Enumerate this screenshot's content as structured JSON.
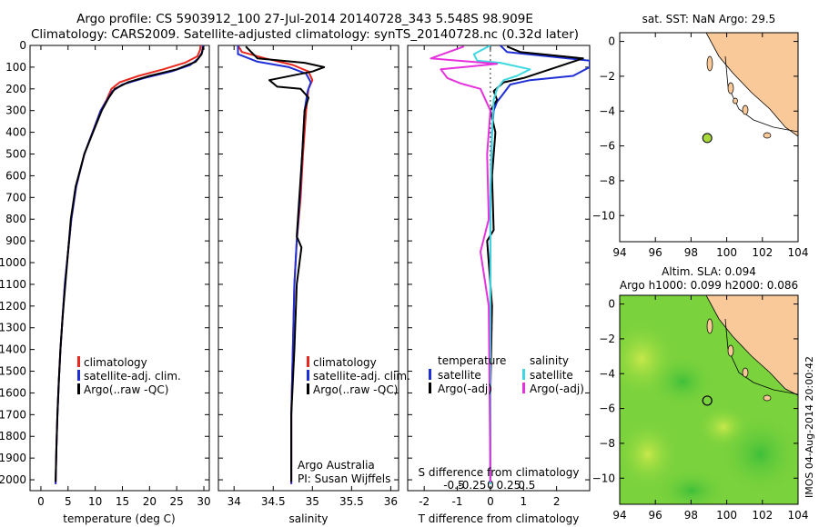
{
  "title_line1": "Argo profile: CS 5903912_100 27-Jul-2014 20140728_343 5.548S 98.909E",
  "title_line2": "Climatology: CARS2009. Satellite-adjusted climatology: synTS_20140728.nc (0.32d later)",
  "colors": {
    "climatology": "#e8271e",
    "satellite": "#1f2fd6",
    "argo": "#000000",
    "sat_salinity": "#3fd8e0",
    "argo_salinity_adj": "#e632dc",
    "land": "#f9c99a",
    "sea_green": "#7ad23c",
    "argo_marker": "#a8d83a"
  },
  "chart_data": [
    {
      "id": "temperature",
      "type": "line",
      "xlabel": "temperature (deg C)",
      "ylim": [
        2050,
        0
      ],
      "xlim": [
        -2,
        31
      ],
      "xticks": [
        0,
        5,
        10,
        15,
        20,
        25,
        30
      ],
      "yticks": [
        0,
        100,
        200,
        300,
        400,
        500,
        600,
        700,
        800,
        900,
        1000,
        1100,
        1200,
        1300,
        1400,
        1500,
        1600,
        1700,
        1800,
        1900,
        2000
      ],
      "legend": [
        "climatology",
        "satellite-adj. clim.",
        "Argo(..raw -QC)"
      ],
      "series": [
        {
          "name": "climatology",
          "color_key": "climatology",
          "x": [
            29.4,
            29.3,
            28.8,
            26.5,
            22.5,
            18.0,
            14.5,
            13.0,
            12.1,
            11.0,
            9.5,
            8.0,
            6.5,
            5.6,
            5.0,
            4.4,
            4.0,
            3.6,
            3.3,
            3.05,
            2.85,
            2.7
          ],
          "y": [
            0,
            20,
            50,
            80,
            110,
            140,
            170,
            200,
            250,
            300,
            400,
            500,
            650,
            800,
            950,
            1100,
            1250,
            1400,
            1550,
            1700,
            1850,
            2020
          ]
        },
        {
          "name": "satellite-adj. clim.",
          "color_key": "satellite",
          "x": [
            29.8,
            29.7,
            29.0,
            27.5,
            24.0,
            19.0,
            15.0,
            13.2,
            12.2,
            11.0,
            9.5,
            8.0,
            6.5,
            5.6,
            5.0,
            4.4,
            4.0,
            3.6,
            3.3,
            3.05,
            2.85,
            2.7
          ],
          "y": [
            0,
            30,
            60,
            90,
            120,
            150,
            180,
            210,
            250,
            300,
            400,
            500,
            650,
            800,
            950,
            1100,
            1250,
            1400,
            1550,
            1700,
            1850,
            2020
          ]
        },
        {
          "name": "Argo(..raw -QC)",
          "color_key": "argo",
          "x": [
            29.9,
            29.6,
            28.5,
            25.0,
            20.0,
            16.0,
            13.6,
            12.5,
            11.2,
            9.6,
            8.0,
            6.4,
            5.5,
            5.0,
            4.5,
            4.0,
            3.6,
            3.3,
            3.05,
            2.85,
            2.7
          ],
          "y": [
            5,
            40,
            75,
            110,
            140,
            170,
            200,
            240,
            300,
            400,
            500,
            650,
            800,
            950,
            1100,
            1250,
            1400,
            1550,
            1700,
            1850,
            2010
          ]
        }
      ]
    },
    {
      "id": "salinity",
      "type": "line",
      "xlabel": "salinity",
      "ylim": [
        2050,
        0
      ],
      "xlim": [
        33.8,
        36.1
      ],
      "xticks": [
        34,
        34.5,
        35,
        35.5,
        36
      ],
      "xticklabels": [
        "34",
        "34.5",
        "35",
        "35.5",
        "36"
      ],
      "legend": [
        "climatology",
        "satellite-adj. clim.",
        "Argo(..raw -QC)"
      ],
      "annotations": [
        "Argo Australia",
        "PI: Susan Wijffels"
      ],
      "series": [
        {
          "name": "climatology",
          "color_key": "climatology",
          "x": [
            34.05,
            34.1,
            34.4,
            34.75,
            34.95,
            35.0,
            34.95,
            34.92,
            34.88,
            34.85,
            34.8,
            34.77,
            34.75,
            34.73,
            34.73
          ],
          "y": [
            0,
            30,
            60,
            90,
            120,
            160,
            200,
            300,
            500,
            700,
            900,
            1100,
            1400,
            1700,
            2020
          ]
        },
        {
          "name": "satellite-adj. clim.",
          "color_key": "satellite",
          "x": [
            34.05,
            34.05,
            34.3,
            34.7,
            34.92,
            34.98,
            34.94,
            34.9,
            34.87,
            34.84,
            34.8,
            34.77,
            34.75,
            34.73,
            34.73
          ],
          "y": [
            0,
            40,
            75,
            100,
            130,
            170,
            210,
            300,
            500,
            700,
            900,
            1100,
            1400,
            1700,
            2020
          ]
        },
        {
          "name": "Argo(..raw -QC)",
          "color_key": "argo",
          "x": [
            34.15,
            34.3,
            34.9,
            35.15,
            35.0,
            34.45,
            34.55,
            34.85,
            34.95,
            34.9,
            34.87,
            34.8,
            34.86,
            34.8,
            34.77,
            34.73,
            34.73
          ],
          "y": [
            5,
            60,
            80,
            100,
            120,
            160,
            190,
            200,
            240,
            300,
            500,
            880,
            930,
            1100,
            1400,
            1700,
            2010
          ]
        }
      ]
    },
    {
      "id": "difference",
      "type": "line",
      "xlabel": "T difference from climatology",
      "xlabel_top": "S difference from climatology",
      "ylim": [
        2050,
        0
      ],
      "xlim": [
        -2.5,
        3.0
      ],
      "xticks": [
        -2,
        -1,
        0,
        1,
        2
      ],
      "top_ticks": [
        -0.5,
        -0.25,
        0,
        0.25,
        0.5
      ],
      "top_ticklabels": [
        "-0.5",
        "-0.25",
        "0",
        "0.25",
        "0.5"
      ],
      "legend_temperature_title": "temperature",
      "legend_salinity_title": "salinity",
      "legend_temperature": [
        "satellite",
        "Argo(-adj)"
      ],
      "legend_salinity": [
        "satellite",
        "Argo(-adj)"
      ],
      "series": [
        {
          "name": "T satellite",
          "color_key": "satellite",
          "x": [
            0.3,
            0.5,
            3.0,
            3.0,
            2.5,
            1.2,
            0.6,
            0.4,
            0.2,
            0.1,
            0.05,
            0.0,
            0.0,
            0.0
          ],
          "y": [
            0,
            30,
            70,
            100,
            140,
            160,
            180,
            220,
            260,
            300,
            400,
            700,
            1200,
            2020
          ]
        },
        {
          "name": "T Argo(-adj)",
          "color_key": "argo",
          "x": [
            0.5,
            0.9,
            2.8,
            2.0,
            1.0,
            0.4,
            0.1,
            0.2,
            0.0,
            0.15,
            0.05,
            0.1,
            -0.1,
            0.05,
            0.0,
            0.0
          ],
          "y": [
            5,
            30,
            60,
            100,
            150,
            170,
            210,
            250,
            300,
            400,
            600,
            850,
            900,
            1200,
            1600,
            2010
          ]
        },
        {
          "name": "S satellite",
          "color_key": "sat_salinity",
          "x": [
            0.0,
            -0.5,
            -0.4,
            0.3,
            1.2,
            0.8,
            0.4,
            0.2,
            0.1,
            0.05,
            0.0,
            0.0,
            0.0
          ],
          "y": [
            0,
            40,
            70,
            80,
            110,
            140,
            160,
            200,
            250,
            400,
            700,
            1200,
            2020
          ]
        },
        {
          "name": "S Argo(-adj)",
          "color_key": "argo_salinity_adj",
          "x": [
            -0.8,
            -1.8,
            0.2,
            -1.5,
            -1.3,
            -0.9,
            -0.3,
            0.0,
            -0.1,
            -0.05,
            -0.3,
            -0.05,
            0.0
          ],
          "y": [
            5,
            60,
            85,
            110,
            150,
            175,
            200,
            300,
            500,
            800,
            950,
            1200,
            2010
          ]
        }
      ]
    },
    {
      "id": "sst_map",
      "type": "map",
      "title": "sat. SST: NaN Argo: 29.5",
      "xlim": [
        94,
        104
      ],
      "ylim": [
        -11.5,
        0.5
      ],
      "xticks": [
        94,
        96,
        98,
        100,
        102,
        104
      ],
      "yticks": [
        0,
        -2,
        -4,
        -6,
        -8,
        -10
      ],
      "marker": {
        "lon": 98.909,
        "lat": -5.548
      }
    },
    {
      "id": "sla_map",
      "type": "map",
      "title_line1": "Altim. SLA: 0.094",
      "title_line2": "Argo h1000: 0.099 h2000: 0.086",
      "xlim": [
        94,
        104
      ],
      "ylim": [
        -11.5,
        0.5
      ],
      "xticks": [
        94,
        96,
        98,
        100,
        102,
        104
      ],
      "yticks": [
        0,
        -2,
        -4,
        -6,
        -8,
        -10
      ],
      "marker": {
        "lon": 98.909,
        "lat": -5.548
      }
    }
  ],
  "footer_stamp": "IMOS 04-Aug-2014 20:00:42"
}
